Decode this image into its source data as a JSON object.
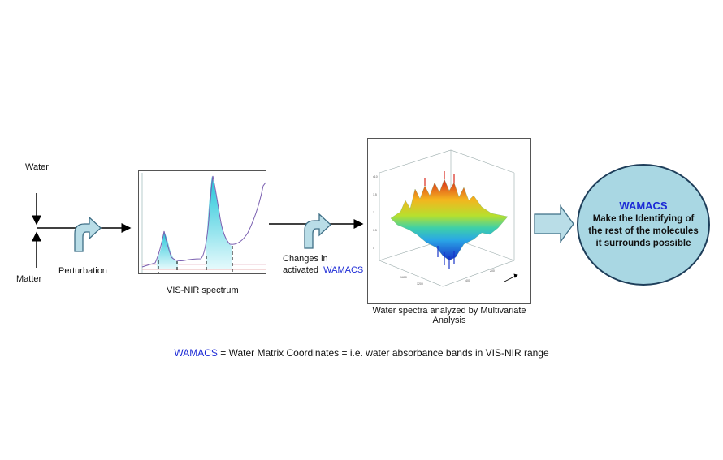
{
  "labels": {
    "water": "Water",
    "matter": "Matter",
    "perturbation": "Perturbation",
    "vis_nir_spectrum": "VIS-NIR spectrum",
    "changes_line1": "Changes in",
    "changes_line2": "activated",
    "changes_acronym": "WAMACS",
    "multivariate_line1": "Water spectra analyzed by   Multivariate",
    "multivariate_line2": "Analysis"
  },
  "result": {
    "title": "WAMACS",
    "text": "Make the Identifying of the rest of the molecules it surrounds possible"
  },
  "caption": {
    "acronym": "WAMACS",
    "definition": " = Water Matrix Coordinates = i.e. water absorbance bands in VIS-NIR range"
  },
  "colors": {
    "wamacs_text": "#1d2bd6",
    "arrow_fill": "#b9dde7",
    "arrow_stroke": "#3f6f86",
    "ellipse_fill": "#a9d7e3",
    "spectrum_line": "#7a5fb0",
    "spectrum_fill": "#27c8dc"
  },
  "icons": [
    "curved-arrow-icon",
    "block-arrow-icon"
  ]
}
